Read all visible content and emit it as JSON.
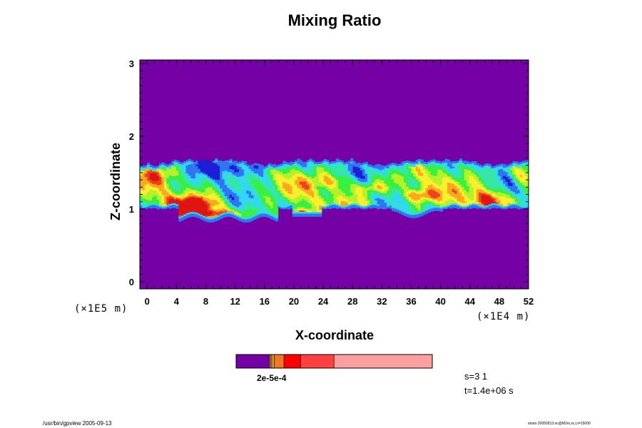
{
  "chart_data": {
    "type": "heatmap",
    "title": "Mixing Ratio",
    "xlabel": "X-coordinate",
    "ylabel": "Z-coordinate",
    "x_unit": "(×1E4 m)",
    "y_unit": "(×1E5 m)",
    "xlim": [
      -1,
      52
    ],
    "ylim": [
      -0.1,
      3.05
    ],
    "x_ticks": [
      0,
      4,
      8,
      12,
      16,
      20,
      24,
      28,
      32,
      36,
      40,
      44,
      48,
      52
    ],
    "y_ticks": [
      0,
      1,
      2,
      3
    ],
    "grid": false,
    "background_color": "#7400a6",
    "palette": [
      "#7400a6",
      "#1e1ed6",
      "#2f76f0",
      "#31d8f4",
      "#34e7a6",
      "#37f040",
      "#b6f02a",
      "#f8f02e",
      "#f8a91e",
      "#f04020",
      "#e01410"
    ],
    "band_region": {
      "z_bottom": 1.0,
      "z_top": 1.68,
      "lower_tongue_z": 0.86
    },
    "colorbar": {
      "labels": "2e-5e-4",
      "segments": [
        {
          "color": "#7400a6",
          "width": 0.17
        },
        {
          "color": "#e6a020",
          "width": 0.006
        },
        {
          "color": "#e8c000",
          "width": 0.006
        },
        {
          "color": "#f0a020",
          "width": 0.012
        },
        {
          "color": "#f07820",
          "width": 0.05
        },
        {
          "color": "#ff0000",
          "width": 0.085
        },
        {
          "color": "#ff4040",
          "width": 0.17
        },
        {
          "color": "#ffa0a0",
          "width": 0.5
        }
      ]
    }
  },
  "info": {
    "step": "s=3 1",
    "time": "t=1.4e+06 s"
  },
  "footer": {
    "left": "/usr/bin/gpview 2005-09-13",
    "right": "strato 20050913.nc@M2m,xc,t,t=15000"
  }
}
